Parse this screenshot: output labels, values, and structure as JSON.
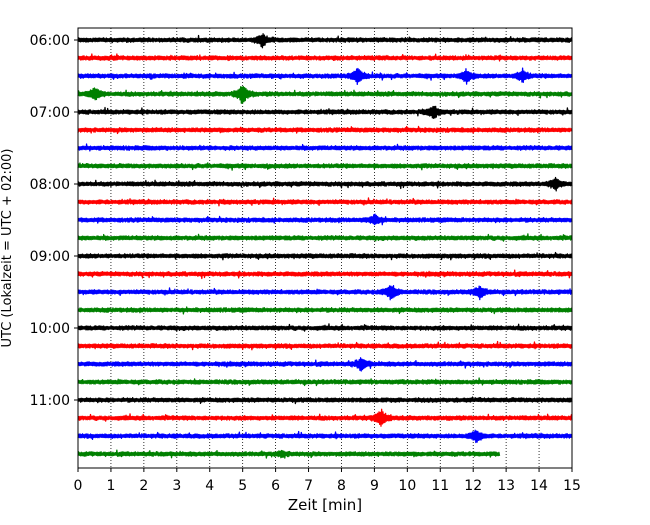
{
  "chart_data": {
    "type": "line",
    "title": "",
    "xlabel": "Zeit  [min]",
    "ylabel": "UTC (Lokalzeit = UTC + 02:00)",
    "xlim": [
      0,
      15
    ],
    "x_ticks": [
      "0",
      "1",
      "2",
      "3",
      "4",
      "5",
      "6",
      "7",
      "8",
      "9",
      "10",
      "11",
      "12",
      "13",
      "14",
      "15"
    ],
    "y_ticks": [
      {
        "label": "06:00",
        "row": 0
      },
      {
        "label": "07:00",
        "row": 4
      },
      {
        "label": "08:00",
        "row": 8
      },
      {
        "label": "09:00",
        "row": 12
      },
      {
        "label": "10:00",
        "row": 16
      },
      {
        "label": "11:00",
        "row": 20
      }
    ],
    "grid": "x-dotted",
    "colors": [
      "#000000",
      "#ff0000",
      "#0000ff",
      "#008000"
    ],
    "traces_count": 24,
    "trace_minutes": 15,
    "last_trace_end_min": 12.8,
    "events": [
      {
        "row": 0,
        "t": 5.6,
        "amp": 0.5
      },
      {
        "row": 2,
        "t": 8.5,
        "amp": 0.6
      },
      {
        "row": 2,
        "t": 11.8,
        "amp": 0.5
      },
      {
        "row": 2,
        "t": 13.5,
        "amp": 0.5
      },
      {
        "row": 3,
        "t": 0.5,
        "amp": 0.5
      },
      {
        "row": 3,
        "t": 5.0,
        "amp": 0.8
      },
      {
        "row": 4,
        "t": 10.8,
        "amp": 0.5
      },
      {
        "row": 8,
        "t": 14.5,
        "amp": 0.5
      },
      {
        "row": 10,
        "t": 9.0,
        "amp": 0.4
      },
      {
        "row": 14,
        "t": 9.5,
        "amp": 0.6
      },
      {
        "row": 14,
        "t": 12.2,
        "amp": 0.5
      },
      {
        "row": 18,
        "t": 8.6,
        "amp": 0.5
      },
      {
        "row": 21,
        "t": 9.2,
        "amp": 0.7
      },
      {
        "row": 22,
        "t": 12.1,
        "amp": 0.5
      },
      {
        "row": 23,
        "t": 6.2,
        "amp": 0.2
      }
    ]
  }
}
